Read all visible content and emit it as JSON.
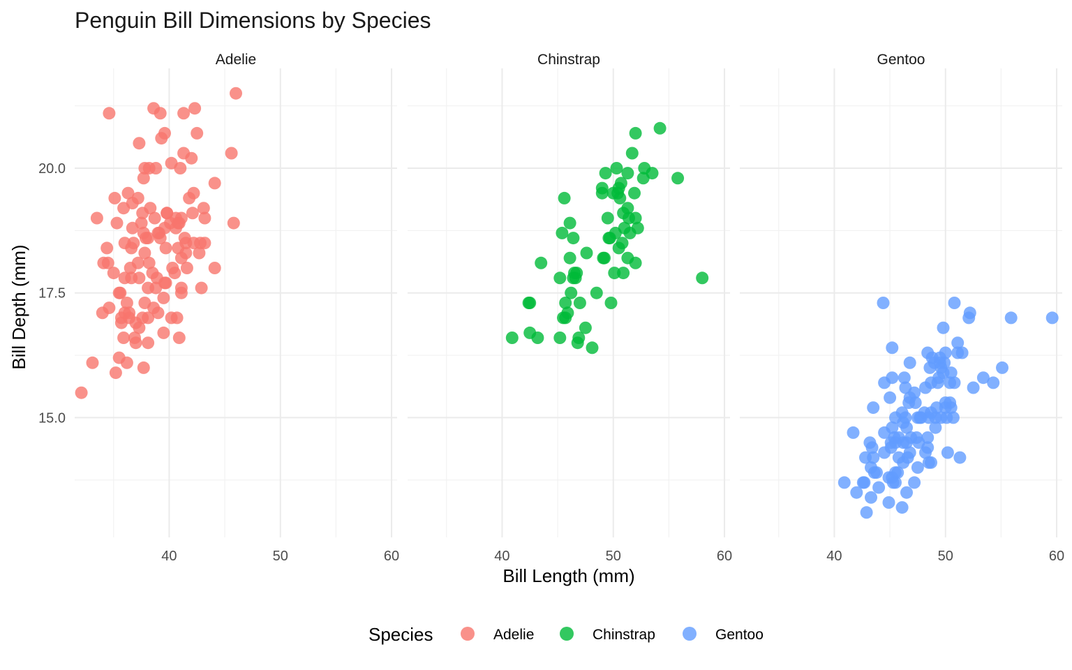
{
  "chart_data": {
    "type": "scatter",
    "title": "Penguin Bill Dimensions by Species",
    "xlabel": "Bill Length (mm)",
    "ylabel": "Bill Depth (mm)",
    "xlim": [
      31.5,
      60.5
    ],
    "ylim": [
      12.6,
      22.0
    ],
    "x_ticks": [
      "40",
      "50",
      "60"
    ],
    "y_ticks": [
      "15.0",
      "17.5",
      "20.0"
    ],
    "grid": true,
    "legend": {
      "title": "Species",
      "position": "bottom"
    },
    "facets": [
      "Adelie",
      "Chinstrap",
      "Gentoo"
    ],
    "colors": {
      "Adelie": "#F8766D",
      "Chinstrap": "#00BA38",
      "Gentoo": "#619CFF"
    },
    "series": [
      {
        "name": "Adelie",
        "points": [
          [
            32.1,
            15.5
          ],
          [
            33.1,
            16.1
          ],
          [
            33.5,
            19.0
          ],
          [
            34.0,
            17.1
          ],
          [
            34.1,
            18.1
          ],
          [
            34.4,
            18.4
          ],
          [
            34.5,
            18.1
          ],
          [
            34.6,
            21.1
          ],
          [
            34.6,
            17.2
          ],
          [
            35.0,
            17.9
          ],
          [
            35.1,
            19.4
          ],
          [
            35.2,
            15.9
          ],
          [
            35.3,
            18.9
          ],
          [
            35.5,
            16.2
          ],
          [
            35.5,
            17.5
          ],
          [
            35.6,
            17.5
          ],
          [
            35.7,
            16.9
          ],
          [
            35.7,
            17.0
          ],
          [
            35.9,
            19.2
          ],
          [
            35.9,
            16.6
          ],
          [
            36.0,
            17.8
          ],
          [
            36.0,
            18.5
          ],
          [
            36.0,
            17.1
          ],
          [
            36.2,
            16.1
          ],
          [
            36.2,
            17.3
          ],
          [
            36.3,
            19.5
          ],
          [
            36.4,
            17.0
          ],
          [
            36.4,
            17.1
          ],
          [
            36.5,
            18.0
          ],
          [
            36.6,
            17.8
          ],
          [
            36.6,
            18.4
          ],
          [
            36.7,
            19.3
          ],
          [
            36.7,
            18.8
          ],
          [
            36.8,
            18.5
          ],
          [
            36.9,
            16.6
          ],
          [
            37.0,
            16.9
          ],
          [
            37.0,
            16.5
          ],
          [
            37.2,
            18.1
          ],
          [
            37.2,
            19.4
          ],
          [
            37.3,
            17.8
          ],
          [
            37.3,
            16.8
          ],
          [
            37.3,
            20.5
          ],
          [
            37.5,
            18.9
          ],
          [
            37.6,
            19.1
          ],
          [
            37.6,
            17.0
          ],
          [
            37.7,
            18.7
          ],
          [
            37.7,
            16.0
          ],
          [
            37.7,
            19.8
          ],
          [
            37.8,
            17.3
          ],
          [
            37.8,
            18.3
          ],
          [
            37.8,
            20.0
          ],
          [
            37.9,
            18.6
          ],
          [
            38.1,
            17.0
          ],
          [
            38.1,
            18.6
          ],
          [
            38.1,
            16.5
          ],
          [
            38.1,
            17.6
          ],
          [
            38.2,
            18.1
          ],
          [
            38.2,
            20.0
          ],
          [
            38.3,
            19.2
          ],
          [
            38.5,
            17.9
          ],
          [
            38.6,
            21.2
          ],
          [
            38.6,
            17.2
          ],
          [
            38.7,
            19.0
          ],
          [
            38.8,
            17.6
          ],
          [
            38.8,
            20.0
          ],
          [
            38.9,
            17.8
          ],
          [
            39.0,
            17.1
          ],
          [
            39.0,
            18.7
          ],
          [
            39.1,
            18.7
          ],
          [
            39.2,
            21.1
          ],
          [
            39.2,
            18.6
          ],
          [
            39.3,
            20.6
          ],
          [
            39.5,
            17.4
          ],
          [
            39.5,
            16.7
          ],
          [
            39.6,
            17.7
          ],
          [
            39.6,
            18.8
          ],
          [
            39.6,
            20.7
          ],
          [
            39.7,
            17.7
          ],
          [
            39.7,
            18.4
          ],
          [
            39.8,
            19.1
          ],
          [
            39.8,
            19.1
          ],
          [
            40.1,
            18.9
          ],
          [
            40.2,
            17.0
          ],
          [
            40.2,
            20.1
          ],
          [
            40.3,
            18.0
          ],
          [
            40.5,
            17.9
          ],
          [
            40.6,
            18.8
          ],
          [
            40.6,
            19.0
          ],
          [
            40.7,
            17.0
          ],
          [
            40.8,
            18.4
          ],
          [
            40.8,
            18.9
          ],
          [
            40.9,
            16.6
          ],
          [
            40.9,
            18.9
          ],
          [
            41.0,
            20.0
          ],
          [
            41.1,
            17.6
          ],
          [
            41.1,
            18.2
          ],
          [
            41.1,
            19.0
          ],
          [
            41.1,
            17.5
          ],
          [
            41.3,
            20.3
          ],
          [
            41.3,
            21.1
          ],
          [
            41.4,
            18.6
          ],
          [
            41.5,
            18.5
          ],
          [
            41.5,
            18.3
          ],
          [
            41.6,
            18.0
          ],
          [
            41.8,
            19.4
          ],
          [
            42.0,
            20.2
          ],
          [
            42.1,
            19.1
          ],
          [
            42.2,
            19.5
          ],
          [
            42.2,
            18.5
          ],
          [
            42.3,
            21.2
          ],
          [
            42.5,
            20.7
          ],
          [
            42.7,
            18.3
          ],
          [
            42.8,
            18.5
          ],
          [
            42.9,
            17.6
          ],
          [
            43.1,
            19.2
          ],
          [
            43.2,
            18.5
          ],
          [
            43.2,
            19.0
          ],
          [
            44.1,
            19.7
          ],
          [
            44.1,
            18.0
          ],
          [
            45.6,
            20.3
          ],
          [
            45.8,
            18.9
          ],
          [
            46.0,
            21.5
          ]
        ]
      },
      {
        "name": "Chinstrap",
        "points": [
          [
            40.9,
            16.6
          ],
          [
            42.4,
            17.3
          ],
          [
            42.5,
            17.3
          ],
          [
            42.5,
            16.7
          ],
          [
            43.2,
            16.6
          ],
          [
            43.5,
            18.1
          ],
          [
            45.2,
            17.8
          ],
          [
            45.2,
            16.6
          ],
          [
            45.4,
            18.7
          ],
          [
            45.5,
            17.0
          ],
          [
            45.6,
            19.4
          ],
          [
            45.7,
            17.0
          ],
          [
            45.7,
            17.3
          ],
          [
            45.9,
            17.1
          ],
          [
            46.1,
            18.2
          ],
          [
            46.1,
            18.9
          ],
          [
            46.2,
            17.5
          ],
          [
            46.4,
            18.6
          ],
          [
            46.4,
            17.8
          ],
          [
            46.5,
            17.9
          ],
          [
            46.6,
            17.8
          ],
          [
            46.7,
            17.9
          ],
          [
            46.8,
            16.5
          ],
          [
            46.9,
            16.6
          ],
          [
            47.0,
            17.3
          ],
          [
            47.5,
            16.8
          ],
          [
            47.6,
            18.3
          ],
          [
            48.1,
            16.4
          ],
          [
            48.5,
            17.5
          ],
          [
            49.0,
            19.5
          ],
          [
            49.0,
            19.6
          ],
          [
            49.1,
            18.2
          ],
          [
            49.2,
            18.2
          ],
          [
            49.3,
            19.9
          ],
          [
            49.5,
            19.0
          ],
          [
            49.6,
            18.6
          ],
          [
            49.7,
            18.6
          ],
          [
            49.8,
            17.3
          ],
          [
            50.0,
            19.5
          ],
          [
            50.1,
            17.9
          ],
          [
            50.2,
            18.7
          ],
          [
            50.3,
            20.0
          ],
          [
            50.4,
            19.5
          ],
          [
            50.5,
            18.4
          ],
          [
            50.5,
            19.6
          ],
          [
            50.6,
            19.4
          ],
          [
            50.7,
            19.7
          ],
          [
            50.8,
            18.5
          ],
          [
            50.9,
            19.1
          ],
          [
            50.9,
            17.9
          ],
          [
            51.0,
            18.8
          ],
          [
            51.3,
            19.2
          ],
          [
            51.3,
            18.2
          ],
          [
            51.3,
            19.9
          ],
          [
            51.4,
            19.0
          ],
          [
            51.5,
            18.7
          ],
          [
            51.7,
            20.3
          ],
          [
            51.9,
            19.5
          ],
          [
            52.0,
            18.1
          ],
          [
            52.0,
            19.0
          ],
          [
            52.0,
            20.7
          ],
          [
            52.2,
            18.8
          ],
          [
            52.7,
            19.8
          ],
          [
            52.8,
            20.0
          ],
          [
            53.5,
            19.9
          ],
          [
            54.2,
            20.8
          ],
          [
            55.8,
            19.8
          ],
          [
            58.0,
            17.8
          ]
        ]
      },
      {
        "name": "Gentoo",
        "points": [
          [
            40.9,
            13.7
          ],
          [
            41.7,
            14.7
          ],
          [
            42.0,
            13.5
          ],
          [
            42.6,
            13.7
          ],
          [
            42.7,
            13.7
          ],
          [
            42.8,
            14.2
          ],
          [
            42.9,
            13.1
          ],
          [
            43.2,
            14.5
          ],
          [
            43.3,
            13.4
          ],
          [
            43.3,
            14.0
          ],
          [
            43.4,
            14.4
          ],
          [
            43.5,
            14.2
          ],
          [
            43.5,
            15.2
          ],
          [
            43.6,
            13.9
          ],
          [
            43.8,
            13.9
          ],
          [
            44.0,
            13.6
          ],
          [
            44.4,
            17.3
          ],
          [
            44.5,
            15.7
          ],
          [
            44.5,
            14.3
          ],
          [
            44.5,
            14.7
          ],
          [
            44.9,
            13.3
          ],
          [
            44.9,
            13.8
          ],
          [
            45.0,
            15.4
          ],
          [
            45.1,
            14.5
          ],
          [
            45.1,
            14.4
          ],
          [
            45.2,
            16.4
          ],
          [
            45.2,
            13.8
          ],
          [
            45.2,
            15.8
          ],
          [
            45.2,
            14.8
          ],
          [
            45.3,
            13.7
          ],
          [
            45.4,
            14.6
          ],
          [
            45.5,
            13.7
          ],
          [
            45.5,
            15.0
          ],
          [
            45.5,
            13.9
          ],
          [
            45.5,
            14.5
          ],
          [
            45.7,
            13.9
          ],
          [
            45.8,
            14.2
          ],
          [
            45.8,
            14.6
          ],
          [
            46.1,
            13.2
          ],
          [
            46.1,
            15.1
          ],
          [
            46.2,
            14.5
          ],
          [
            46.2,
            14.1
          ],
          [
            46.2,
            14.9
          ],
          [
            46.3,
            15.8
          ],
          [
            46.4,
            15.0
          ],
          [
            46.4,
            15.6
          ],
          [
            46.5,
            14.5
          ],
          [
            46.5,
            13.5
          ],
          [
            46.5,
            14.8
          ],
          [
            46.6,
            14.2
          ],
          [
            46.7,
            15.3
          ],
          [
            46.8,
            14.3
          ],
          [
            46.8,
            15.4
          ],
          [
            46.8,
            16.1
          ],
          [
            46.9,
            14.6
          ],
          [
            47.2,
            13.7
          ],
          [
            47.2,
            15.5
          ],
          [
            47.3,
            15.3
          ],
          [
            47.4,
            14.6
          ],
          [
            47.5,
            14.0
          ],
          [
            47.5,
            15.0
          ],
          [
            47.6,
            14.5
          ],
          [
            47.7,
            15.0
          ],
          [
            47.8,
            15.0
          ],
          [
            48.1,
            15.1
          ],
          [
            48.2,
            14.3
          ],
          [
            48.2,
            15.6
          ],
          [
            48.4,
            14.4
          ],
          [
            48.4,
            16.3
          ],
          [
            48.4,
            14.6
          ],
          [
            48.5,
            14.1
          ],
          [
            48.5,
            15.0
          ],
          [
            48.6,
            16.0
          ],
          [
            48.7,
            14.1
          ],
          [
            48.7,
            15.1
          ],
          [
            48.7,
            15.7
          ],
          [
            48.8,
            16.2
          ],
          [
            49.0,
            16.1
          ],
          [
            49.1,
            14.8
          ],
          [
            49.1,
            15.0
          ],
          [
            49.2,
            15.2
          ],
          [
            49.3,
            15.7
          ],
          [
            49.4,
            15.8
          ],
          [
            49.5,
            16.1
          ],
          [
            49.5,
            16.2
          ],
          [
            49.6,
            16.0
          ],
          [
            49.6,
            15.0
          ],
          [
            49.8,
            16.8
          ],
          [
            49.8,
            15.9
          ],
          [
            49.9,
            16.1
          ],
          [
            50.0,
            15.3
          ],
          [
            50.0,
            15.2
          ],
          [
            50.0,
            16.3
          ],
          [
            50.1,
            15.0
          ],
          [
            50.2,
            14.3
          ],
          [
            50.4,
            15.3
          ],
          [
            50.4,
            15.7
          ],
          [
            50.5,
            15.2
          ],
          [
            50.5,
            15.9
          ],
          [
            50.7,
            15.0
          ],
          [
            50.8,
            15.7
          ],
          [
            50.8,
            17.3
          ],
          [
            51.1,
            16.3
          ],
          [
            51.1,
            16.5
          ],
          [
            51.3,
            14.2
          ],
          [
            51.5,
            16.3
          ],
          [
            52.1,
            17.0
          ],
          [
            52.2,
            17.1
          ],
          [
            52.5,
            15.6
          ],
          [
            53.4,
            15.8
          ],
          [
            54.3,
            15.7
          ],
          [
            55.1,
            16.0
          ],
          [
            55.9,
            17.0
          ],
          [
            59.6,
            17.0
          ]
        ]
      }
    ]
  }
}
